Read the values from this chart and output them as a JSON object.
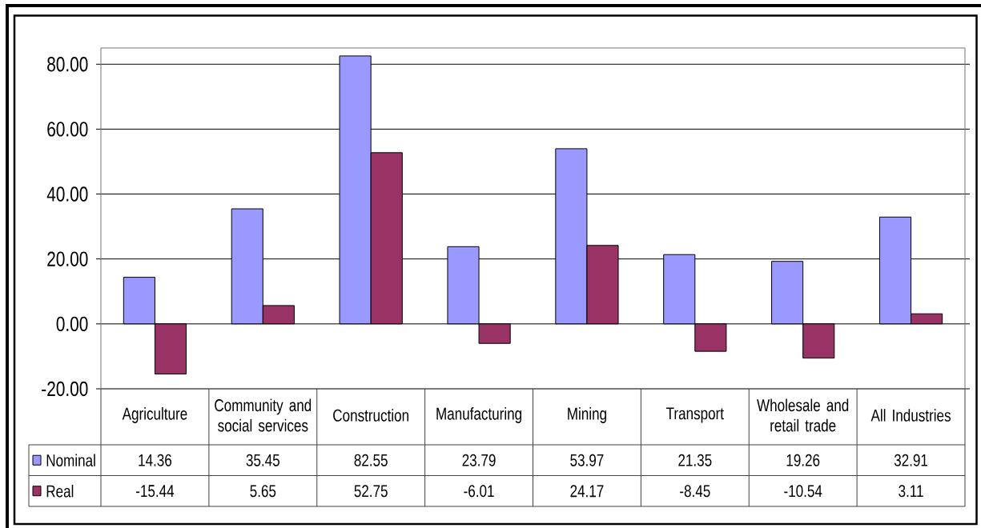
{
  "chart_data": {
    "type": "bar",
    "categories": [
      "Agriculture",
      "Community and social services",
      "Construction",
      "Manufacturing",
      "Mining",
      "Transport",
      "Wholesale and retail trade",
      "All Industries"
    ],
    "series": [
      {
        "name": "Nominal",
        "color": "#9999ff",
        "values": [
          14.36,
          35.45,
          82.55,
          23.79,
          53.97,
          21.35,
          19.26,
          32.91
        ]
      },
      {
        "name": "Real",
        "color": "#993366",
        "values": [
          -15.44,
          5.65,
          52.75,
          -6.01,
          24.17,
          -8.45,
          -10.54,
          3.11
        ]
      }
    ],
    "ylim": [
      -20,
      85
    ],
    "yticks": [
      {
        "value": -20,
        "label": "-20.00"
      },
      {
        "value": 0,
        "label": "0.00"
      },
      {
        "value": 20,
        "label": "20.00"
      },
      {
        "value": 40,
        "label": "40.00"
      },
      {
        "value": 60,
        "label": "60.00"
      },
      {
        "value": 80,
        "label": "80.00"
      }
    ],
    "grid": "y",
    "legend": "bottom left",
    "data_labels": true
  }
}
